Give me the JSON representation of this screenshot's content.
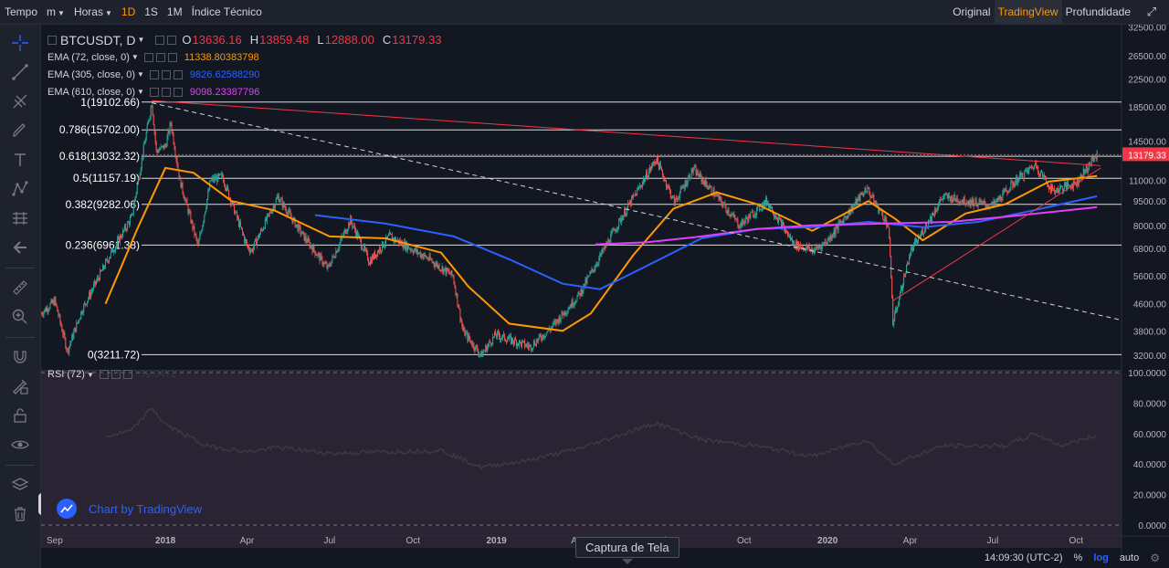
{
  "topbar": {
    "left": [
      {
        "name": "tempo-label",
        "label": "Tempo",
        "interactable": false
      },
      {
        "name": "interval-m-dropdown",
        "label": "m",
        "caret": true
      },
      {
        "name": "interval-horas-dropdown",
        "label": "Horas",
        "caret": true
      },
      {
        "name": "interval-1d-button",
        "label": "1D",
        "active": true
      },
      {
        "name": "interval-1s-button",
        "label": "1S"
      },
      {
        "name": "interval-1m-button",
        "label": "1M"
      },
      {
        "name": "indicator-button",
        "label": "Índice Técnico"
      }
    ],
    "right": [
      {
        "name": "view-original-tab",
        "label": "Original"
      },
      {
        "name": "view-tradingview-tab",
        "label": "TradingView",
        "active": true
      },
      {
        "name": "view-depth-tab",
        "label": "Profundidade"
      }
    ]
  },
  "legend": {
    "symbol": "BTCUSDT, D",
    "ohlc": [
      {
        "k": "O",
        "v": "13636.16"
      },
      {
        "k": "H",
        "v": "13859.48"
      },
      {
        "k": "L",
        "v": "12888.00"
      },
      {
        "k": "C",
        "v": "13179.33"
      }
    ],
    "emas": [
      {
        "name": "EMA (72, close, 0)",
        "value": "11338.80383798",
        "color": "#ff9800"
      },
      {
        "name": "EMA (305, close, 0)",
        "value": "9826.62588290",
        "color": "#2962ff"
      },
      {
        "name": "EMA (610, close, 0)",
        "value": "9098.23387796",
        "color": "#e040fb"
      }
    ]
  },
  "rsi": {
    "name": "RSI (72)",
    "value": "59.0471",
    "color": "#363a45"
  },
  "watermark": "Chart by TradingView",
  "tooltip": "Captura de Tela",
  "bottom": {
    "clock": "14:09:30 (UTC-2)",
    "percent": "%",
    "log": "log",
    "auto": "auto"
  },
  "icons": [
    "crosshair-icon",
    "trend-line-icon",
    "pitchfork-icon",
    "brush-icon",
    "text-icon",
    "pattern-icon",
    "prediction-icon",
    "back-arrow-icon",
    "ruler-icon",
    "zoom-in-icon",
    "magnet-icon",
    "lock-drawing-icon",
    "lock-icon",
    "eye-icon",
    "layers-icon",
    "trash-icon",
    "settings-gear-icon"
  ],
  "colors": {
    "bg": "#131722",
    "up": "#26a69a",
    "down": "#ef5350",
    "fib": "#ffffff",
    "trendline": "#f23645",
    "ema72": "#ff9800",
    "ema305": "#2962ff",
    "ema610": "#e040fb",
    "rsi_panel_bg": "#2a2333",
    "last_price": "#f23645"
  },
  "chart_data": [
    {
      "type": "line",
      "subtype": "candlestick",
      "title": "BTCUSDT, D",
      "y_scale": "log",
      "ylim": [
        3000,
        33000
      ],
      "price_ticks": [
        "32500.00",
        "26500.00",
        "22500.00",
        "18500.00",
        "14500.00",
        "11000.00",
        "9500.00",
        "8000.00",
        "6800.00",
        "5600.00",
        "4600.00",
        "3800.00",
        "3200.00"
      ],
      "last_price": "13179.33",
      "x_ticks": [
        "Sep",
        "2018",
        "Apr",
        "Jul",
        "Oct",
        "2019",
        "Apr",
        "Jul",
        "Oct",
        "2020",
        "Apr",
        "Jul",
        "Oct"
      ],
      "x_tick_dates": [
        "2017-09-01",
        "2018-01-01",
        "2018-04-01",
        "2018-07-01",
        "2018-10-01",
        "2019-01-01",
        "2019-04-01",
        "2019-07-01",
        "2019-10-01",
        "2020-01-01",
        "2020-04-01",
        "2020-07-01",
        "2020-10-01"
      ],
      "xlim": [
        "2017-08-17",
        "2020-11-20"
      ],
      "close_path": [
        {
          "x": "2017-08-17",
          "y": 4300
        },
        {
          "x": "2017-09-01",
          "y": 4700
        },
        {
          "x": "2017-09-15",
          "y": 3300
        },
        {
          "x": "2017-10-01",
          "y": 4400
        },
        {
          "x": "2017-11-01",
          "y": 6500
        },
        {
          "x": "2017-11-25",
          "y": 8500
        },
        {
          "x": "2017-12-17",
          "y": 19100
        },
        {
          "x": "2017-12-22",
          "y": 13500
        },
        {
          "x": "2018-01-01",
          "y": 14000
        },
        {
          "x": "2018-01-07",
          "y": 16500
        },
        {
          "x": "2018-01-17",
          "y": 11000
        },
        {
          "x": "2018-02-06",
          "y": 6900
        },
        {
          "x": "2018-02-20",
          "y": 11000
        },
        {
          "x": "2018-03-05",
          "y": 11300
        },
        {
          "x": "2018-04-01",
          "y": 6900
        },
        {
          "x": "2018-04-06",
          "y": 6700
        },
        {
          "x": "2018-05-05",
          "y": 9800
        },
        {
          "x": "2018-06-01",
          "y": 7500
        },
        {
          "x": "2018-06-29",
          "y": 5900
        },
        {
          "x": "2018-07-24",
          "y": 8300
        },
        {
          "x": "2018-08-14",
          "y": 6200
        },
        {
          "x": "2018-09-05",
          "y": 7400
        },
        {
          "x": "2018-10-15",
          "y": 6400
        },
        {
          "x": "2018-11-14",
          "y": 5600
        },
        {
          "x": "2018-11-25",
          "y": 3800
        },
        {
          "x": "2018-12-15",
          "y": 3200
        },
        {
          "x": "2018-12-31",
          "y": 3700
        },
        {
          "x": "2019-02-07",
          "y": 3400
        },
        {
          "x": "2019-03-01",
          "y": 3850
        },
        {
          "x": "2019-04-02",
          "y": 4900
        },
        {
          "x": "2019-05-14",
          "y": 8000
        },
        {
          "x": "2019-06-26",
          "y": 12800
        },
        {
          "x": "2019-07-16",
          "y": 9400
        },
        {
          "x": "2019-08-06",
          "y": 11900
        },
        {
          "x": "2019-09-01",
          "y": 9800
        },
        {
          "x": "2019-09-26",
          "y": 8000
        },
        {
          "x": "2019-10-26",
          "y": 9500
        },
        {
          "x": "2019-11-25",
          "y": 7000
        },
        {
          "x": "2019-12-17",
          "y": 6700
        },
        {
          "x": "2020-01-01",
          "y": 7200
        },
        {
          "x": "2020-02-13",
          "y": 10400
        },
        {
          "x": "2020-03-08",
          "y": 8000
        },
        {
          "x": "2020-03-12",
          "y": 4900
        },
        {
          "x": "2020-03-13",
          "y": 4000
        },
        {
          "x": "2020-04-01",
          "y": 6600
        },
        {
          "x": "2020-05-07",
          "y": 9800
        },
        {
          "x": "2020-06-02",
          "y": 9500
        },
        {
          "x": "2020-07-01",
          "y": 9200
        },
        {
          "x": "2020-07-27",
          "y": 11000
        },
        {
          "x": "2020-08-17",
          "y": 12300
        },
        {
          "x": "2020-09-05",
          "y": 10200
        },
        {
          "x": "2020-10-01",
          "y": 10800
        },
        {
          "x": "2020-10-21",
          "y": 12900
        },
        {
          "x": "2020-10-24",
          "y": 13179
        }
      ],
      "series": [
        {
          "name": "EMA (72, close, 0)",
          "color": "#ff9800",
          "points": [
            {
              "x": "2017-10-27",
              "y": 4600
            },
            {
              "x": "2017-12-01",
              "y": 7800
            },
            {
              "x": "2018-01-01",
              "y": 12000
            },
            {
              "x": "2018-02-01",
              "y": 11600
            },
            {
              "x": "2018-03-15",
              "y": 9500
            },
            {
              "x": "2018-05-01",
              "y": 8900
            },
            {
              "x": "2018-07-01",
              "y": 7400
            },
            {
              "x": "2018-09-01",
              "y": 7300
            },
            {
              "x": "2018-11-01",
              "y": 6600
            },
            {
              "x": "2018-12-01",
              "y": 5200
            },
            {
              "x": "2019-01-15",
              "y": 4000
            },
            {
              "x": "2019-03-15",
              "y": 3800
            },
            {
              "x": "2019-04-15",
              "y": 4300
            },
            {
              "x": "2019-06-01",
              "y": 6500
            },
            {
              "x": "2019-07-15",
              "y": 9000
            },
            {
              "x": "2019-09-01",
              "y": 10100
            },
            {
              "x": "2019-10-15",
              "y": 9300
            },
            {
              "x": "2019-12-15",
              "y": 7700
            },
            {
              "x": "2020-02-15",
              "y": 9500
            },
            {
              "x": "2020-03-15",
              "y": 8400
            },
            {
              "x": "2020-04-15",
              "y": 7200
            },
            {
              "x": "2020-06-01",
              "y": 8700
            },
            {
              "x": "2020-07-15",
              "y": 9300
            },
            {
              "x": "2020-09-01",
              "y": 10900
            },
            {
              "x": "2020-10-24",
              "y": 11339
            }
          ]
        },
        {
          "name": "EMA (305, close, 0)",
          "color": "#2962ff",
          "points": [
            {
              "x": "2018-06-15",
              "y": 8600
            },
            {
              "x": "2018-09-01",
              "y": 8100
            },
            {
              "x": "2018-11-15",
              "y": 7400
            },
            {
              "x": "2019-01-15",
              "y": 6300
            },
            {
              "x": "2019-03-15",
              "y": 5300
            },
            {
              "x": "2019-04-25",
              "y": 5100
            },
            {
              "x": "2019-06-15",
              "y": 6000
            },
            {
              "x": "2019-08-15",
              "y": 7300
            },
            {
              "x": "2019-10-15",
              "y": 7800
            },
            {
              "x": "2019-12-15",
              "y": 7900
            },
            {
              "x": "2020-02-15",
              "y": 8200
            },
            {
              "x": "2020-04-15",
              "y": 7900
            },
            {
              "x": "2020-06-15",
              "y": 8200
            },
            {
              "x": "2020-08-15",
              "y": 8900
            },
            {
              "x": "2020-10-24",
              "y": 9827
            }
          ]
        },
        {
          "name": "EMA (610, close, 0)",
          "color": "#e040fb",
          "points": [
            {
              "x": "2019-04-20",
              "y": 7000
            },
            {
              "x": "2019-06-15",
              "y": 7100
            },
            {
              "x": "2019-08-15",
              "y": 7400
            },
            {
              "x": "2019-10-15",
              "y": 7800
            },
            {
              "x": "2019-12-15",
              "y": 8000
            },
            {
              "x": "2020-03-01",
              "y": 8100
            },
            {
              "x": "2020-05-15",
              "y": 8200
            },
            {
              "x": "2020-07-15",
              "y": 8500
            },
            {
              "x": "2020-10-24",
              "y": 9098
            }
          ]
        }
      ],
      "fib_levels": [
        {
          "label": "1(19102.66)",
          "y": 19102.66
        },
        {
          "label": "0.786(15702.00)",
          "y": 15702.0
        },
        {
          "label": "0.618(13032.32)",
          "y": 13032.32
        },
        {
          "label": "0.5(11157.19)",
          "y": 11157.19
        },
        {
          "label": "0.382(9282.06)",
          "y": 9282.06
        },
        {
          "label": "0.236(6961.38)",
          "y": 6961.38
        },
        {
          "label": "0(3211.72)",
          "y": 3211.72
        }
      ],
      "trendlines": [
        {
          "color": "#f23645",
          "style": "solid",
          "points": [
            {
              "x": "2017-12-17",
              "y": 19300
            },
            {
              "x": "2020-10-28",
              "y": 12200
            }
          ]
        },
        {
          "color": "#f23645",
          "style": "solid",
          "points": [
            {
              "x": "2020-03-13",
              "y": 4700
            },
            {
              "x": "2020-10-28",
              "y": 12000
            }
          ]
        },
        {
          "color": "#d1d4dc",
          "style": "dashed",
          "points": [
            {
              "x": "2017-12-17",
              "y": 19000
            },
            {
              "x": "2020-11-20",
              "y": 4100
            }
          ]
        }
      ]
    },
    {
      "type": "line",
      "title": "RSI (72)",
      "ylim": [
        0,
        100
      ],
      "y_ticks": [
        "100.0000",
        "80.0000",
        "60.0000",
        "40.0000",
        "20.0000",
        "0.0000"
      ],
      "last_value": "59.0471",
      "series": [
        {
          "name": "RSI (72)",
          "color": "#363a45",
          "points": [
            {
              "x": "2017-10-27",
              "y": 58
            },
            {
              "x": "2017-11-25",
              "y": 62
            },
            {
              "x": "2017-12-17",
              "y": 77
            },
            {
              "x": "2018-01-01",
              "y": 66
            },
            {
              "x": "2018-02-15",
              "y": 52
            },
            {
              "x": "2018-04-01",
              "y": 48
            },
            {
              "x": "2018-05-05",
              "y": 51
            },
            {
              "x": "2018-07-01",
              "y": 47
            },
            {
              "x": "2018-09-01",
              "y": 48
            },
            {
              "x": "2018-11-01",
              "y": 49
            },
            {
              "x": "2018-12-15",
              "y": 38
            },
            {
              "x": "2019-02-01",
              "y": 42
            },
            {
              "x": "2019-04-01",
              "y": 50
            },
            {
              "x": "2019-06-26",
              "y": 67
            },
            {
              "x": "2019-08-15",
              "y": 56
            },
            {
              "x": "2019-10-15",
              "y": 52
            },
            {
              "x": "2019-12-15",
              "y": 45
            },
            {
              "x": "2020-02-13",
              "y": 56
            },
            {
              "x": "2020-03-13",
              "y": 40
            },
            {
              "x": "2020-05-07",
              "y": 52
            },
            {
              "x": "2020-07-15",
              "y": 52
            },
            {
              "x": "2020-08-17",
              "y": 60
            },
            {
              "x": "2020-09-15",
              "y": 52
            },
            {
              "x": "2020-10-24",
              "y": 59
            }
          ]
        }
      ]
    }
  ]
}
